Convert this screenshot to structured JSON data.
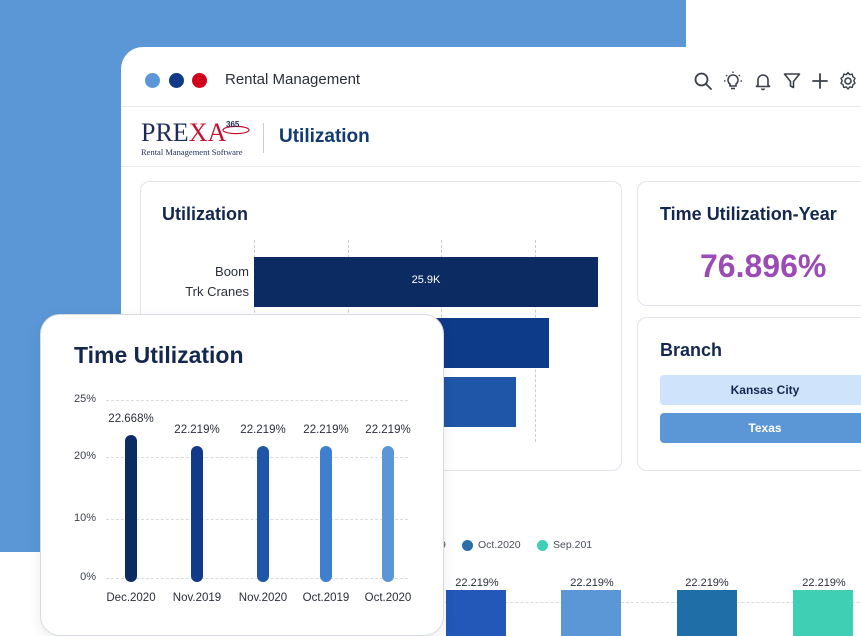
{
  "window": {
    "title": "Rental Management",
    "dot_colors": [
      "#5b97d6",
      "#123a8a",
      "#d0021b"
    ],
    "toolbar_icons": [
      "search-icon",
      "lightbulb-icon",
      "bell-icon",
      "filter-icon",
      "plus-icon",
      "gear-icon"
    ]
  },
  "header": {
    "logo_main_a": "PRE",
    "logo_main_b": "XA",
    "logo_365": "365",
    "logo_sub": "Rental Management Software",
    "page_title": "Utilization"
  },
  "utilization_card": {
    "title": "Utilization",
    "categories": [
      {
        "label_line1": "Boom",
        "label_line2": "Trk Cranes"
      }
    ],
    "bar_labels": [
      "25.9K"
    ],
    "bar_colors": [
      "#0d2b63",
      "#0e3a8a",
      "#1f56a8"
    ]
  },
  "time_util_year": {
    "title": "Time Utilization-Year",
    "value": "76.896%"
  },
  "branch": {
    "title": "Branch",
    "items": [
      {
        "label": "Kansas City",
        "bg": "#cfe3fb",
        "fg": "#14284f"
      },
      {
        "label": "Texas",
        "bg": "#5b97d6",
        "fg": "#ffffff"
      }
    ]
  },
  "bottom_chart": {
    "legend": [
      {
        "label": "9",
        "color": "#5b97d6"
      },
      {
        "label": "Oct.2020",
        "color": "#2b6ea8"
      },
      {
        "label": "Sep.201",
        "color": "#3fcfb4"
      }
    ],
    "bars": [
      {
        "label": "22.219%",
        "color": "#2357b8"
      },
      {
        "label": "22.219%",
        "color": "#5b97d6"
      },
      {
        "label": "22.219%",
        "color": "#1f6ea8"
      },
      {
        "label": "22.219%",
        "color": "#3fcfb4"
      }
    ]
  },
  "time_utilization": {
    "title": "Time Utilization",
    "chart_data": {
      "type": "bar",
      "title": "Time Utilization",
      "categories": [
        "Dec.2020",
        "Nov.2019",
        "Nov.2020",
        "Oct.2019",
        "Oct.2020"
      ],
      "values": [
        22.668,
        22.219,
        22.219,
        22.219,
        22.219
      ],
      "value_labels": [
        "22.668%",
        "22.219%",
        "22.219%",
        "22.219%",
        "22.219%"
      ],
      "colors": [
        "#0d2b63",
        "#123a8a",
        "#1f56a8",
        "#3f7fd0",
        "#5b97d6"
      ],
      "yticks": [
        "25%",
        "20%",
        "10%",
        "0%"
      ],
      "ylim": [
        0,
        25
      ],
      "grid": true
    }
  }
}
